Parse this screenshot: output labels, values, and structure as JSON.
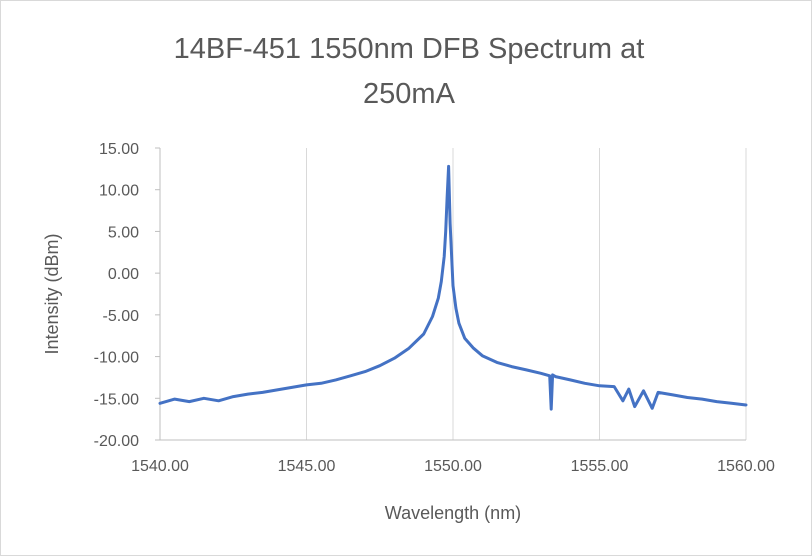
{
  "chart_data": {
    "type": "line",
    "title_lines": [
      "14BF-451 1550nm DFB Spectrum at",
      "250mA"
    ],
    "xlabel": "Wavelength (nm)",
    "ylabel": "Intensity (dBm)",
    "xlim": [
      1540,
      1560
    ],
    "ylim": [
      -20,
      15
    ],
    "x_ticks": [
      1540,
      1545,
      1550,
      1555,
      1560
    ],
    "x_tick_labels": [
      "1540.00",
      "1545.00",
      "1550.00",
      "1555.00",
      "1560.00"
    ],
    "y_ticks": [
      15,
      10,
      5,
      0,
      -5,
      -10,
      -15,
      -20
    ],
    "y_tick_labels": [
      "15.00",
      "10.00",
      "5.00",
      "0.00",
      "-5.00",
      "-10.00",
      "-15.00",
      "-20.00"
    ],
    "grid": "vertical",
    "legend": "none",
    "series_color": "#4472c4",
    "series": [
      {
        "x": [
          1540.0,
          1540.5,
          1541.0,
          1541.5,
          1542.0,
          1542.5,
          1543.0,
          1543.5,
          1544.0,
          1544.5,
          1545.0,
          1545.5,
          1546.0,
          1546.5,
          1547.0,
          1547.5,
          1548.0,
          1548.5,
          1549.0,
          1549.3,
          1549.5,
          1549.6,
          1549.7,
          1549.75,
          1549.8,
          1549.85,
          1549.9,
          1550.0,
          1550.1,
          1550.2,
          1550.4,
          1550.7,
          1551.0,
          1551.5,
          1552.0,
          1552.5,
          1553.0,
          1553.3,
          1553.35,
          1553.4,
          1553.5,
          1554.0,
          1554.5,
          1555.0,
          1555.5,
          1555.8,
          1556.0,
          1556.2,
          1556.5,
          1556.8,
          1557.0,
          1557.5,
          1558.0,
          1558.5,
          1559.0,
          1559.5,
          1560.0
        ],
        "y": [
          -15.6,
          -15.1,
          -15.4,
          -15.0,
          -15.3,
          -14.8,
          -14.5,
          -14.3,
          -14.0,
          -13.7,
          -13.4,
          -13.2,
          -12.8,
          -12.3,
          -11.8,
          -11.1,
          -10.2,
          -9.0,
          -7.3,
          -5.2,
          -3.0,
          -1.0,
          2.0,
          5.0,
          9.0,
          12.8,
          6.0,
          -1.5,
          -4.2,
          -6.0,
          -7.8,
          -9.0,
          -9.9,
          -10.7,
          -11.2,
          -11.6,
          -12.0,
          -12.3,
          -16.3,
          -12.2,
          -12.4,
          -12.8,
          -13.2,
          -13.5,
          -13.6,
          -15.3,
          -13.9,
          -16.0,
          -14.1,
          -16.2,
          -14.3,
          -14.6,
          -14.9,
          -15.1,
          -15.4,
          -15.6,
          -15.8
        ]
      }
    ]
  }
}
